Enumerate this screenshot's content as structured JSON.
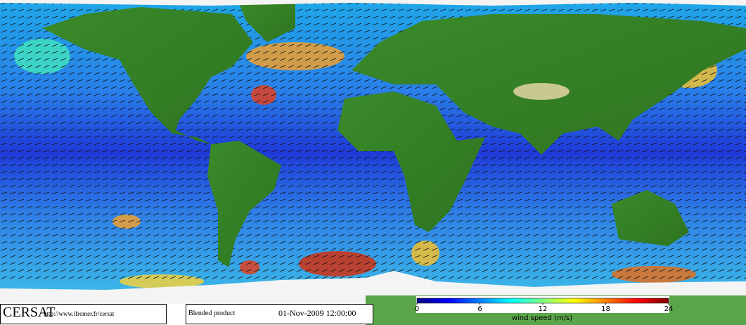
{
  "map": {
    "colorbar": {
      "label": "wind speed (m/s)",
      "range": [
        0,
        24
      ],
      "ticks": [
        0,
        6,
        12,
        18,
        24
      ],
      "colors": [
        "#00007f",
        "#0000ff",
        "#0080ff",
        "#00ffff",
        "#80ff80",
        "#ffff00",
        "#ff8000",
        "#ff0000",
        "#7f0000"
      ]
    }
  },
  "footer": {
    "logo": "CERSAT",
    "url": "http://www.ifremer.fr/cersat",
    "product": "Blended product",
    "date": "01-Nov-2009 12:00:00"
  }
}
